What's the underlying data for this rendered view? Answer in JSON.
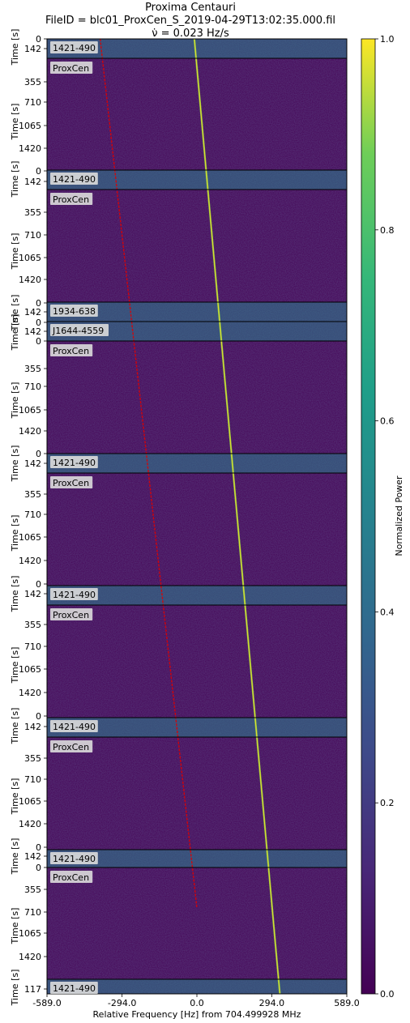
{
  "title": {
    "line1": "Proxima Centauri",
    "line2": "FileID = blc01_ProxCen_S_2019-04-29T13:02:35.000.fil",
    "line3": "ν̇ = 0.023 Hz/s"
  },
  "xaxis": {
    "label": "Relative Frequency [Hz] from 704.499928 MHz",
    "ticks": [
      "-589.0",
      "-294.0",
      "0.0",
      "294.0",
      "589.0"
    ]
  },
  "colorbar": {
    "label": "Normalized Power",
    "ticks": [
      "0.0",
      "0.2",
      "0.4",
      "0.6",
      "0.8",
      "1.0"
    ]
  },
  "time_label": "Time [s]",
  "colors": {
    "background": "#440154",
    "signal": "#fde725",
    "drift_line": "#e00000"
  },
  "chart_data": {
    "type": "heatmap",
    "colormap": "viridis",
    "x_range": [
      -589.0,
      589.0
    ],
    "color_range": [
      0.0,
      1.0
    ],
    "panels": [
      {
        "label": "1421-490",
        "time_ticks": [
          "0",
          "142"
        ]
      },
      {
        "label": "ProxCen",
        "time_ticks": [
          "355",
          "710",
          "1065",
          "1420",
          "0"
        ]
      },
      {
        "label": "1421-490",
        "time_ticks": [
          "142"
        ]
      },
      {
        "label": "ProxCen",
        "time_ticks": [
          "355",
          "710",
          "1065",
          "1420",
          "0"
        ]
      },
      {
        "label": "1934-638",
        "time_ticks": [
          "142",
          "0"
        ]
      },
      {
        "label": "J1644-4559",
        "time_ticks": [
          "142",
          "0"
        ]
      },
      {
        "label": "ProxCen",
        "time_ticks": [
          "355",
          "710",
          "1065",
          "1420",
          "0"
        ]
      },
      {
        "label": "1421-490",
        "time_ticks": [
          "142"
        ]
      },
      {
        "label": "ProxCen",
        "time_ticks": [
          "355",
          "710",
          "1065",
          "1420",
          "0"
        ]
      },
      {
        "label": "1421-490",
        "time_ticks": [
          "142"
        ]
      },
      {
        "label": "ProxCen",
        "time_ticks": [
          "355",
          "710",
          "1065",
          "1420",
          "0"
        ]
      },
      {
        "label": "1421-490",
        "time_ticks": [
          "142"
        ]
      },
      {
        "label": "ProxCen",
        "time_ticks": [
          "355",
          "710",
          "1065",
          "1420",
          "0"
        ]
      },
      {
        "label": "1421-490",
        "time_ticks": [
          "142"
        ]
      },
      {
        "label": "ProxCen",
        "time_ticks": [
          "0",
          "355",
          "710",
          "1065",
          "1420"
        ]
      },
      {
        "label": "1421-490",
        "time_ticks": [
          "117"
        ]
      }
    ],
    "signal_track_hz": [
      [
        -10,
        0.0
      ],
      [
        326,
        1.0
      ]
    ],
    "drift_line_hz": [
      [
        -380,
        0.0
      ],
      [
        0,
        0.91
      ]
    ]
  }
}
